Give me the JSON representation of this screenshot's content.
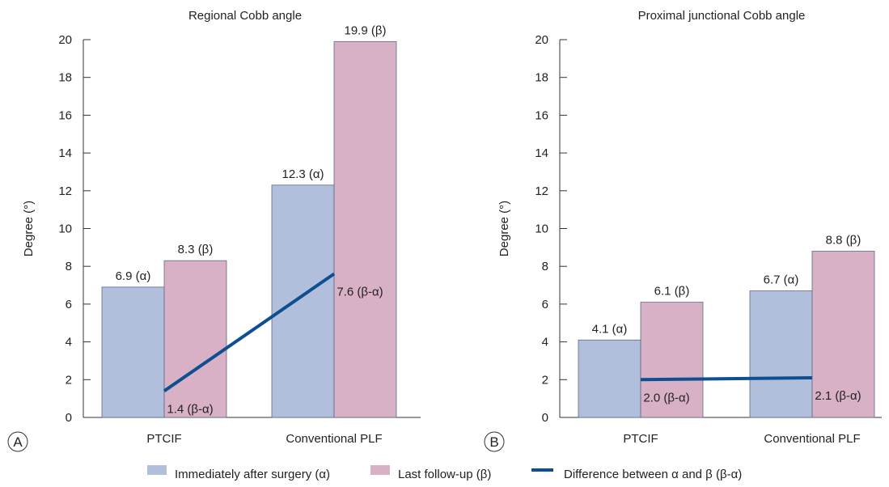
{
  "legend": {
    "entries": [
      {
        "label": "Immediately after surgery (α)",
        "color": "#b1bfdc"
      },
      {
        "label": "Last follow-up (β)",
        "color": "#d8b1c6"
      },
      {
        "label": "Difference between α and β (β-α)",
        "color": "#0e4f91"
      }
    ]
  },
  "chart_data": [
    {
      "type": "bar",
      "panel_letter": "A",
      "title": "Regional Cobb angle",
      "ylabel": "Degree (°)",
      "xlabel": "",
      "ylim": [
        0,
        20
      ],
      "yticks": [
        0,
        2,
        4,
        6,
        8,
        10,
        12,
        14,
        16,
        18,
        20
      ],
      "categories": [
        "PTCIF",
        "Conventional PLF"
      ],
      "series": [
        {
          "name": "Immediately after surgery (α)",
          "values": [
            6.9,
            12.3
          ],
          "labels": [
            "6.9 (α)",
            "12.3 (α)"
          ],
          "color": "#b1bfdc"
        },
        {
          "name": "Last follow-up (β)",
          "values": [
            8.3,
            19.9
          ],
          "labels": [
            "8.3 (β)",
            "19.9 (β)"
          ],
          "color": "#d8b1c6"
        }
      ],
      "difference_line": {
        "name": "Difference between α and β (β-α)",
        "values": [
          1.4,
          7.6
        ],
        "labels": [
          "1.4 (β-α)",
          "7.6 (β-α)"
        ],
        "color": "#0e4f91"
      }
    },
    {
      "type": "bar",
      "panel_letter": "B",
      "title": "Proximal junctional Cobb angle",
      "ylabel": "Degree (°)",
      "xlabel": "",
      "ylim": [
        0,
        20
      ],
      "yticks": [
        0,
        2,
        4,
        6,
        8,
        10,
        12,
        14,
        16,
        18,
        20
      ],
      "categories": [
        "PTCIF",
        "Conventional PLF"
      ],
      "series": [
        {
          "name": "Immediately after surgery (α)",
          "values": [
            4.1,
            6.7
          ],
          "labels": [
            "4.1 (α)",
            "6.7 (α)"
          ],
          "color": "#b1bfdc"
        },
        {
          "name": "Last follow-up (β)",
          "values": [
            6.1,
            8.8
          ],
          "labels": [
            "6.1 (β)",
            "8.8 (β)"
          ],
          "color": "#d8b1c6"
        }
      ],
      "difference_line": {
        "name": "Difference between α and β (β-α)",
        "values": [
          2.0,
          2.1
        ],
        "labels": [
          "2.0 (β-α)",
          "2.1 (β-α)"
        ],
        "color": "#0e4f91"
      }
    }
  ]
}
